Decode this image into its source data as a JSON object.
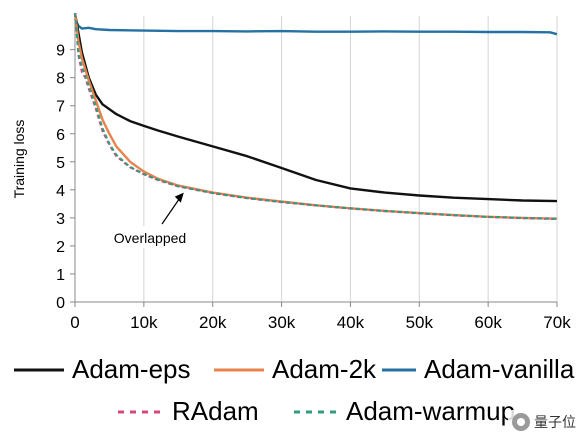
{
  "chart_data": {
    "type": "line",
    "title": "",
    "xlabel": "",
    "ylabel": "Training loss",
    "xlim": [
      0,
      70000
    ],
    "ylim": [
      0,
      10.2
    ],
    "x_ticks": [
      0,
      10000,
      20000,
      30000,
      40000,
      50000,
      60000,
      70000
    ],
    "x_tick_labels": [
      "0",
      "10k",
      "20k",
      "30k",
      "40k",
      "50k",
      "60k",
      "70k"
    ],
    "y_ticks": [
      0,
      1,
      2,
      3,
      4,
      5,
      6,
      7,
      8,
      9
    ],
    "y_tick_labels": [
      "0",
      "1",
      "2",
      "3",
      "4",
      "5",
      "6",
      "7",
      "8",
      "9"
    ],
    "grid": "vertical",
    "legend_position": "bottom",
    "series": [
      {
        "name": "Adam-vanilla",
        "color": "#2471a3",
        "dash": "solid",
        "x": [
          0,
          500,
          1000,
          2000,
          3000,
          5000,
          10000,
          15000,
          20000,
          25000,
          30000,
          35000,
          40000,
          45000,
          50000,
          55000,
          60000,
          65000,
          69000,
          70000
        ],
        "y": [
          10.1,
          9.85,
          9.75,
          9.78,
          9.73,
          9.7,
          9.68,
          9.66,
          9.66,
          9.65,
          9.66,
          9.64,
          9.64,
          9.65,
          9.64,
          9.64,
          9.63,
          9.63,
          9.62,
          9.55
        ]
      },
      {
        "name": "Adam-eps",
        "color": "#111111",
        "dash": "solid",
        "x": [
          0,
          500,
          1000,
          2000,
          3000,
          4000,
          6000,
          8000,
          10000,
          12000,
          15000,
          20000,
          25000,
          30000,
          35000,
          40000,
          45000,
          50000,
          55000,
          60000,
          65000,
          70000
        ],
        "y": [
          10.3,
          9.6,
          8.9,
          8.0,
          7.4,
          7.05,
          6.7,
          6.45,
          6.28,
          6.12,
          5.9,
          5.55,
          5.2,
          4.78,
          4.35,
          4.05,
          3.9,
          3.8,
          3.72,
          3.67,
          3.62,
          3.6
        ]
      },
      {
        "name": "Adam-2k",
        "color": "#e8834e",
        "dash": "solid",
        "x": [
          0,
          500,
          1000,
          2000,
          3000,
          4000,
          5000,
          6000,
          8000,
          10000,
          12000,
          15000,
          20000,
          25000,
          30000,
          35000,
          40000,
          45000,
          50000,
          55000,
          60000,
          65000,
          70000
        ],
        "y": [
          10.3,
          9.3,
          8.7,
          7.9,
          7.2,
          6.5,
          6.0,
          5.55,
          5.0,
          4.65,
          4.4,
          4.15,
          3.9,
          3.72,
          3.58,
          3.45,
          3.34,
          3.25,
          3.17,
          3.1,
          3.04,
          3.0,
          2.97
        ]
      },
      {
        "name": "RAdam",
        "color": "#d6487a",
        "dash": "dashed",
        "x": [
          0,
          500,
          1000,
          1500,
          2000,
          3000,
          4000,
          5000,
          6000,
          8000,
          10000,
          12000,
          15000,
          20000,
          25000,
          30000,
          35000,
          40000,
          45000,
          50000,
          55000,
          60000,
          65000,
          70000
        ],
        "y": [
          10.3,
          8.8,
          8.2,
          8.0,
          7.6,
          6.9,
          6.1,
          5.6,
          5.2,
          4.8,
          4.55,
          4.35,
          4.12,
          3.88,
          3.7,
          3.56,
          3.44,
          3.33,
          3.24,
          3.16,
          3.09,
          3.03,
          2.99,
          2.96
        ]
      },
      {
        "name": "Adam-warmup",
        "color": "#2e9e7e",
        "dash": "dashed",
        "x": [
          0,
          500,
          1000,
          1500,
          2000,
          3000,
          4000,
          5000,
          6000,
          8000,
          10000,
          12000,
          15000,
          20000,
          25000,
          30000,
          35000,
          40000,
          45000,
          50000,
          55000,
          60000,
          65000,
          70000
        ],
        "y": [
          10.3,
          8.9,
          8.4,
          8.1,
          7.7,
          7.0,
          6.2,
          5.65,
          5.25,
          4.82,
          4.57,
          4.37,
          4.13,
          3.89,
          3.71,
          3.57,
          3.45,
          3.34,
          3.25,
          3.17,
          3.1,
          3.04,
          3.0,
          2.97
        ]
      }
    ],
    "annotations": [
      {
        "text": "Overlapped",
        "arrow_to": [
          15800,
          3.9
        ]
      }
    ]
  },
  "legend": {
    "row1": [
      "Adam-eps",
      "Adam-2k",
      "Adam-vanilla"
    ],
    "row2": [
      "RAdam",
      "Adam-warmup"
    ]
  },
  "watermark": {
    "text": "量子位"
  }
}
